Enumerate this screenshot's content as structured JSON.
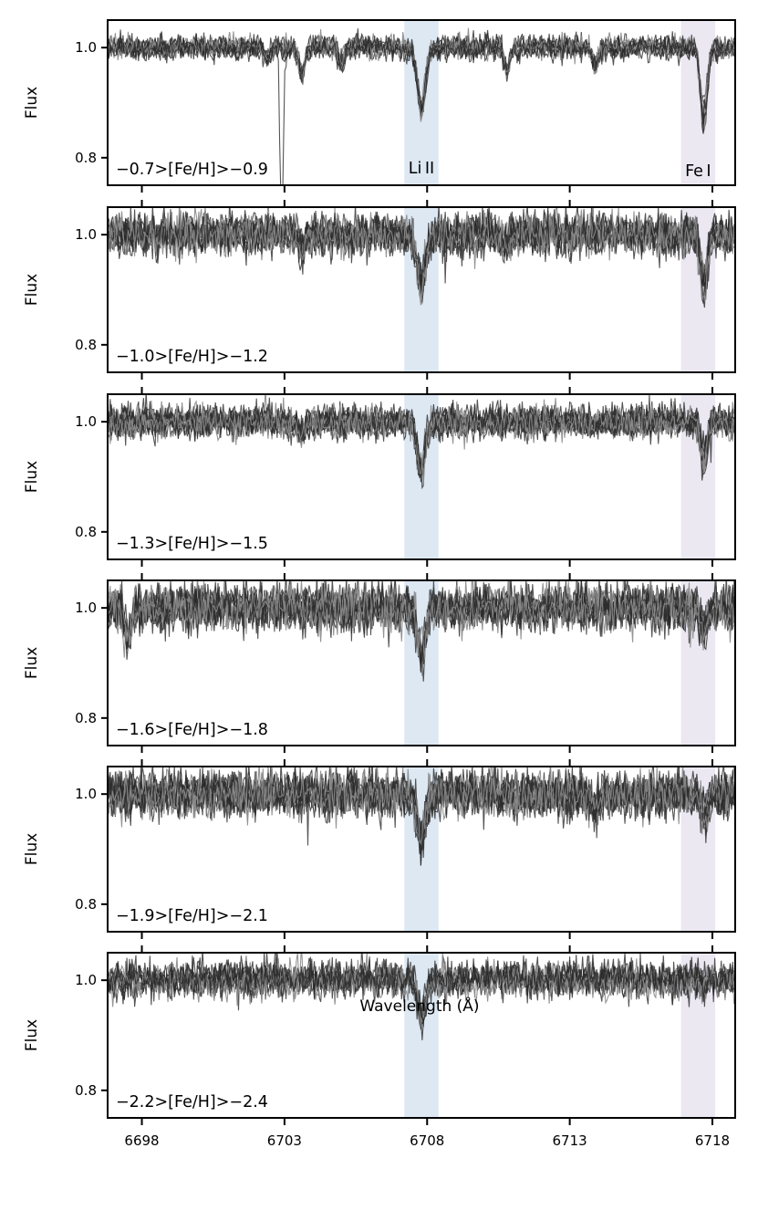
{
  "chart_data": {
    "type": "line",
    "xlabel": "Wavelength (Å)",
    "ylabel": "Flux",
    "xlim": [
      6696.8,
      6718.8
    ],
    "ylim": [
      0.75,
      1.05
    ],
    "xticks": [
      6698,
      6703,
      6708,
      6713,
      6718
    ],
    "yticks": [
      0.8,
      1.0
    ],
    "shaded_bands": [
      {
        "label": "Li II",
        "range": [
          6707.2,
          6708.4
        ],
        "color": "#dde8f3"
      },
      {
        "label": "Fe I",
        "range": [
          6716.9,
          6718.1
        ],
        "color": "#ebe8f2"
      }
    ],
    "line_centers": {
      "li": 6707.8,
      "fe": 6717.7
    },
    "panels": [
      {
        "label": "−0.7>[Fe/H]>−0.9",
        "n_spectra": 10,
        "noise": 0.01,
        "li_depth": [
          0.1,
          0.13
        ],
        "fe_depth": [
          0.1,
          0.15
        ],
        "extra_lines": [
          [
            6703.6,
            0.05,
            0.04
          ],
          [
            6705.0,
            0.03,
            0.03
          ],
          [
            6710.8,
            0.04,
            0.06
          ],
          [
            6713.9,
            0.03,
            0.06
          ],
          [
            6702.4,
            0.02,
            0.02
          ]
        ],
        "anomaly": {
          "x": 6702.9,
          "ymin": 0.72
        }
      },
      {
        "label": "−1.0>[Fe/H]>−1.2",
        "n_spectra": 12,
        "noise": 0.018,
        "li_depth": [
          0.08,
          0.11
        ],
        "fe_depth": [
          0.07,
          0.12
        ],
        "extra_lines": [
          [
            6703.6,
            0.03,
            0.02
          ],
          [
            6710.8,
            0.02,
            0.03
          ]
        ]
      },
      {
        "label": "−1.3>[Fe/H]>−1.5",
        "n_spectra": 12,
        "noise": 0.014,
        "li_depth": [
          0.07,
          0.1
        ],
        "fe_depth": [
          0.04,
          0.09
        ],
        "extra_lines": [
          [
            6703.6,
            0.02,
            0.02
          ]
        ]
      },
      {
        "label": "−1.6>[Fe/H]>−1.8",
        "n_spectra": 12,
        "noise": 0.02,
        "li_depth": [
          0.07,
          0.1
        ],
        "fe_depth": [
          0.03,
          0.05
        ],
        "extra_lines": [
          [
            6697.5,
            0.05,
            0.09
          ]
        ]
      },
      {
        "label": "−1.9>[Fe/H]>−2.1",
        "n_spectra": 12,
        "noise": 0.02,
        "li_depth": [
          0.07,
          0.09
        ],
        "fe_depth": [
          0.02,
          0.06
        ],
        "extra_lines": [
          [
            6713.9,
            0.02,
            0.05
          ]
        ]
      },
      {
        "label": "−2.2>[Fe/H]>−2.4",
        "n_spectra": 10,
        "noise": 0.016,
        "li_depth": [
          0.05,
          0.08
        ],
        "fe_depth": [
          0.0,
          0.02
        ],
        "extra_lines": []
      }
    ]
  }
}
